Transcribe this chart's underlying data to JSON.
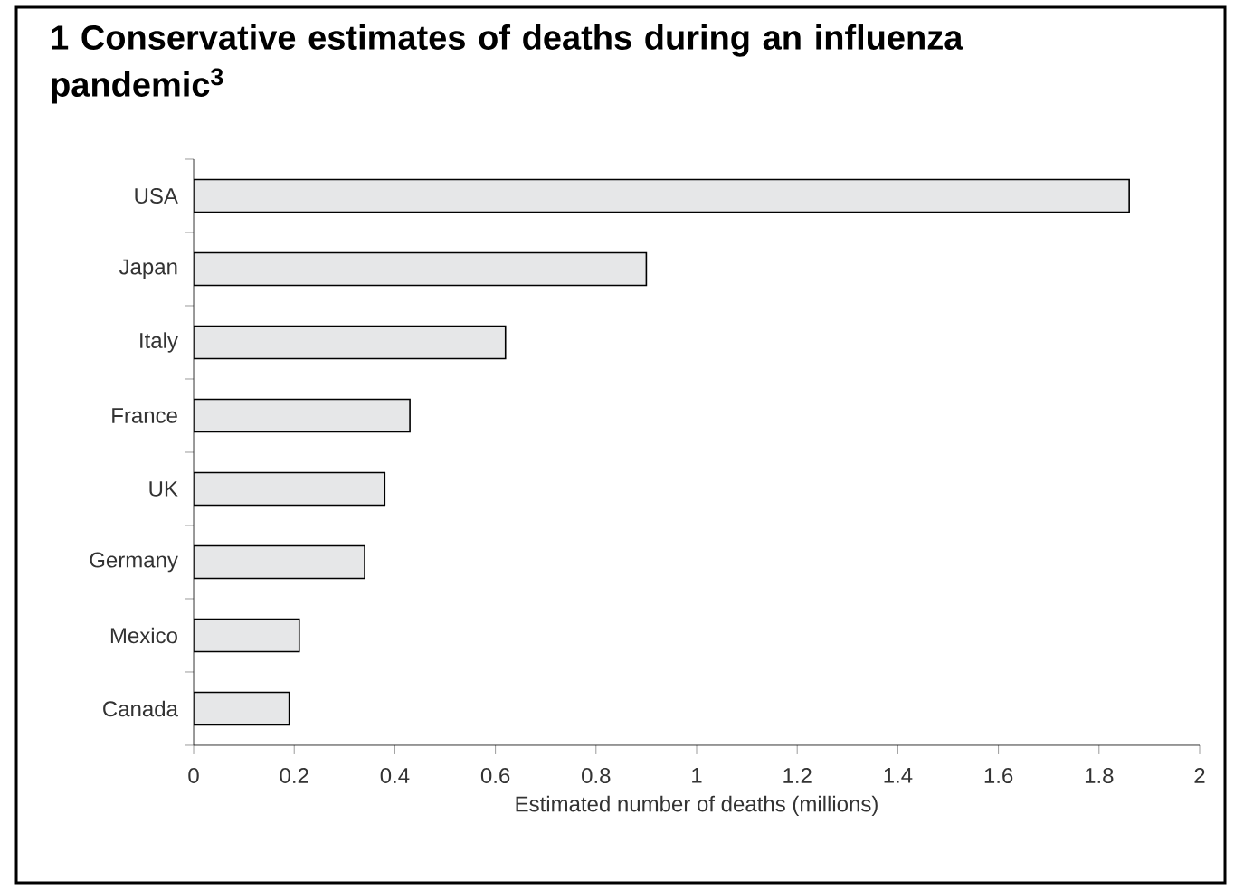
{
  "chart_data": {
    "type": "bar",
    "orientation": "horizontal",
    "title": "1  Conservative estimates of deaths during an influenza pandemic$^{3}$",
    "xlabel": "Estimated number of deaths (millions)",
    "categories": [
      "USA",
      "Japan",
      "Italy",
      "France",
      "UK",
      "Germany",
      "Mexico",
      "Canada"
    ],
    "values": [
      1.86,
      0.9,
      0.62,
      0.43,
      0.38,
      0.34,
      0.21,
      0.19
    ],
    "color": "#e6e7e8",
    "xlim": [
      0,
      2
    ],
    "xticks": [
      0,
      0.2,
      0.4,
      0.6,
      0.8,
      1,
      1.2,
      1.4,
      1.6,
      1.8,
      2
    ]
  }
}
